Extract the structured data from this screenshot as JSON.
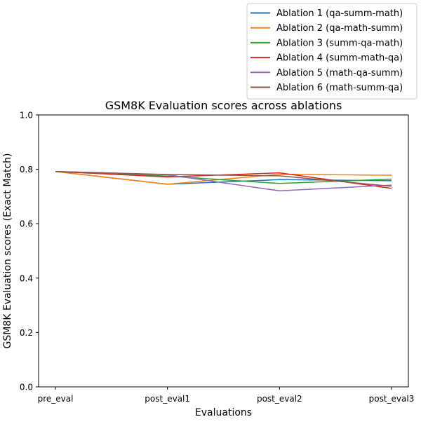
{
  "chart_data": {
    "type": "line",
    "title": "GSM8K Evaluation scores across ablations",
    "xlabel": "Evaluations",
    "ylabel": "GSM8K Evaluation scores (Exact Match)",
    "categories": [
      "pre_eval",
      "post_eval1",
      "post_eval2",
      "post_eval3"
    ],
    "ylim": [
      0,
      1.0
    ],
    "yticks": [
      "0.0",
      "0.2",
      "0.4",
      "0.6",
      "0.8",
      "1.0"
    ],
    "grid": false,
    "legend_position": "top-right",
    "series": [
      {
        "name": "Ablation 1 (qa-summ-math)",
        "color": "#1f77b4",
        "values": [
          0.792,
          0.745,
          0.762,
          0.758
        ]
      },
      {
        "name": "Ablation 2 (qa-math-summ)",
        "color": "#ff7f0e",
        "values": [
          0.792,
          0.745,
          0.782,
          0.778
        ]
      },
      {
        "name": "Ablation 3 (summ-qa-math)",
        "color": "#2ca02c",
        "values": [
          0.792,
          0.775,
          0.748,
          0.764
        ]
      },
      {
        "name": "Ablation 4 (summ-math-qa)",
        "color": "#d62728",
        "values": [
          0.792,
          0.772,
          0.787,
          0.73
        ]
      },
      {
        "name": "Ablation 5 (math-qa-summ)",
        "color": "#9467bd",
        "values": [
          0.792,
          0.78,
          0.721,
          0.742
        ]
      },
      {
        "name": "Ablation 6 (math-summ-qa)",
        "color": "#8c564b",
        "values": [
          0.792,
          0.781,
          0.776,
          0.738
        ]
      }
    ]
  }
}
